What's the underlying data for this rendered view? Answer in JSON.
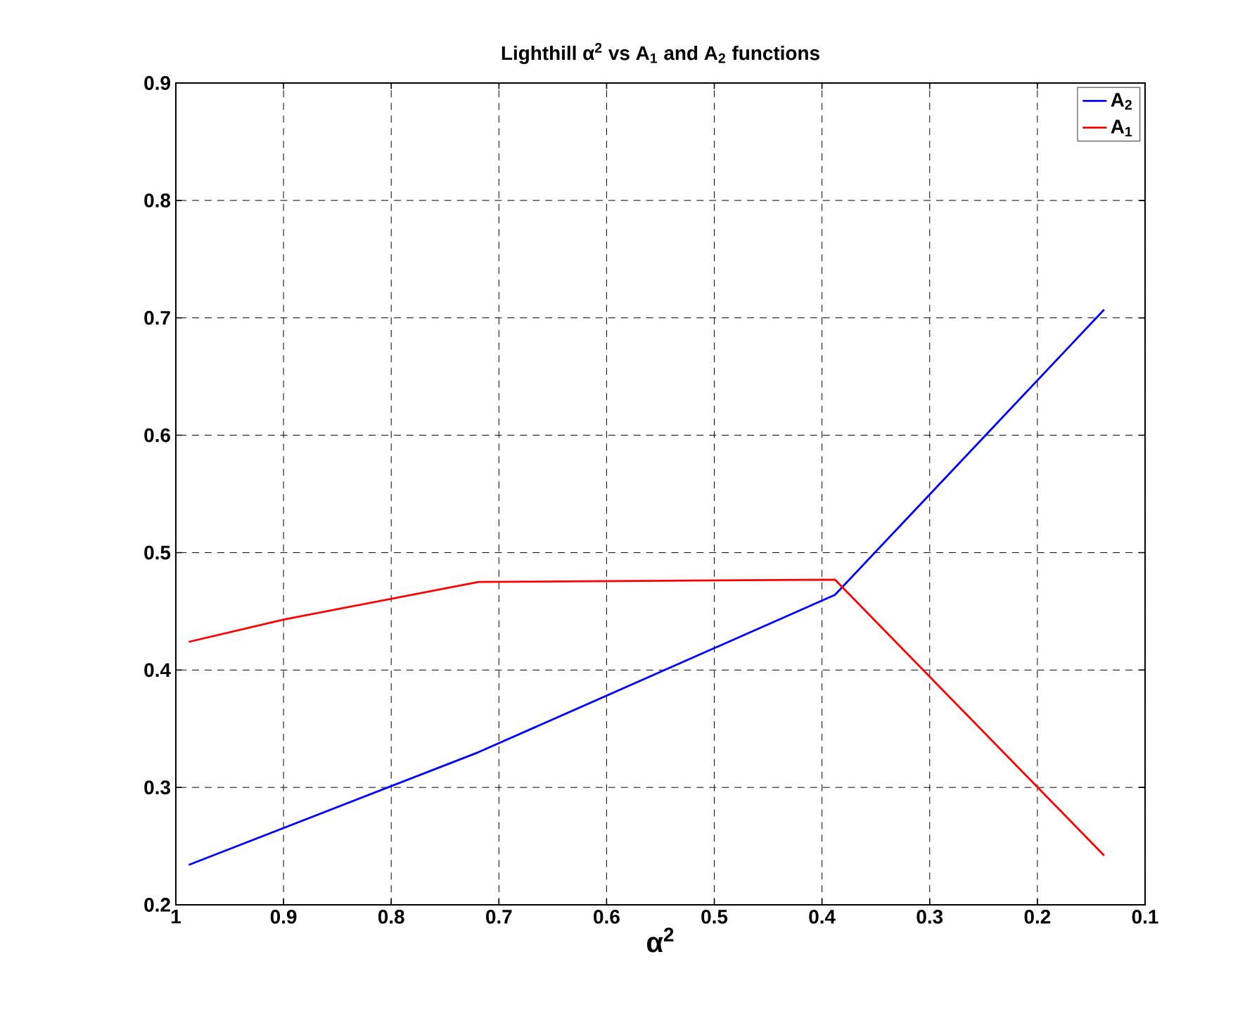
{
  "chart_data": {
    "type": "line",
    "title": "Lighthill α$^{2}$ vs A$_{1}$ and A$_{2}$ functions",
    "xlabel": "α$^{2}$",
    "xlim": [
      1,
      0.1
    ],
    "xticks": [
      1,
      0.9,
      0.8,
      0.7,
      0.6,
      0.5,
      0.4,
      0.3,
      0.2,
      0.1
    ],
    "ylim": [
      0.2,
      0.9
    ],
    "yticks": [
      0.2,
      0.3,
      0.4,
      0.5,
      0.6,
      0.7,
      0.8,
      0.9
    ],
    "x": [
      0.988,
      0.719,
      0.388,
      0.138
    ],
    "series": [
      {
        "name": "A$_{2}$",
        "color": "#0000ff",
        "values": [
          0.234,
          0.33,
          0.464,
          0.707
        ]
      },
      {
        "name": "A$_{1}$",
        "color": "#ff0000",
        "x": [
          0.988,
          0.9,
          0.719,
          0.388,
          0.138
        ],
        "values": [
          0.424,
          0.443,
          0.475,
          0.477,
          0.242
        ]
      }
    ],
    "grid": true,
    "legend": "top right",
    "marker": "none",
    "line_style": "solid"
  }
}
